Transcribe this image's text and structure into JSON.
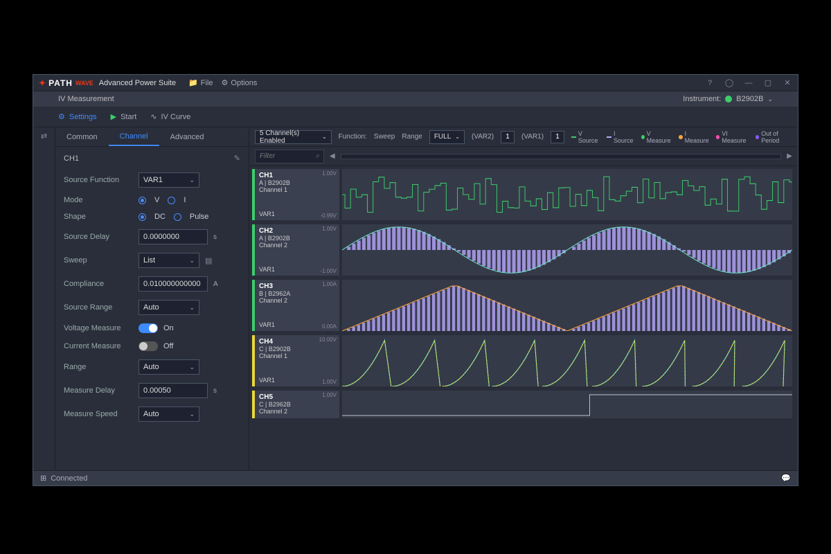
{
  "titlebar": {
    "brand_path": "PATH",
    "brand_wave": "WAVE",
    "suite": "Advanced Power Suite",
    "file": "File",
    "options": "Options",
    "brand_icon_color": "#e8391a"
  },
  "subheader": {
    "title": "IV Measurement",
    "instrument_label": "Instrument:",
    "instrument_value": "B2902B",
    "status_color": "#3bce6b"
  },
  "toolbar": {
    "settings": "Settings",
    "start": "Start",
    "ivcurve": "IV Curve",
    "settings_color": "#3d8bff",
    "start_color": "#3bce6b"
  },
  "tabs": {
    "common": "Common",
    "channel": "Channel",
    "advanced": "Advanced",
    "active": "channel"
  },
  "sidebar": {
    "ch": "CH1",
    "source_function": {
      "label": "Source Function",
      "value": "VAR1"
    },
    "mode": {
      "label": "Mode",
      "v": "V",
      "i": "I",
      "selected": "V"
    },
    "shape": {
      "label": "Shape",
      "dc": "DC",
      "pulse": "Pulse",
      "selected": "DC"
    },
    "source_delay": {
      "label": "Source Delay",
      "value": "0.0000000",
      "unit": "s"
    },
    "sweep": {
      "label": "Sweep",
      "value": "List"
    },
    "compliance": {
      "label": "Compliance",
      "value": "0.010000000000",
      "unit": "A"
    },
    "source_range": {
      "label": "Source Range",
      "value": "Auto"
    },
    "voltage_measure": {
      "label": "Voltage Measure",
      "state": "On",
      "on": true
    },
    "current_measure": {
      "label": "Current Measure",
      "state": "Off",
      "on": false
    },
    "range": {
      "label": "Range",
      "value": "Auto"
    },
    "measure_delay": {
      "label": "Measure Delay",
      "value": "0.00050",
      "unit": "s"
    },
    "measure_speed": {
      "label": "Measure Speed",
      "value": "Auto"
    }
  },
  "controls": {
    "channels_enabled": "5 Channel(s) Enabled",
    "function_label": "Function:",
    "function_value": "Sweep",
    "range_label": "Range",
    "range_value": "FULL",
    "var2_label": "(VAR2)",
    "var2_value": "1",
    "var1_label": "(VAR1)",
    "var1_value": "1"
  },
  "legend": [
    {
      "label": "V Source",
      "color": "#3bce6b",
      "shape": "line"
    },
    {
      "label": "I Source",
      "color": "#b9a8ff",
      "shape": "line"
    },
    {
      "label": "V Measure",
      "color": "#3bce6b",
      "shape": "dot"
    },
    {
      "label": "I Measure",
      "color": "#ffa53b",
      "shape": "dot"
    },
    {
      "label": "VI Measure",
      "color": "#ff4db5",
      "shape": "dot"
    },
    {
      "label": "Out of Period",
      "color": "#8e5bff",
      "shape": "dot"
    }
  ],
  "filter": {
    "placeholder": "Filter"
  },
  "channels": [
    {
      "name": "CH1",
      "sub1": "A | B2902B",
      "sub2": "Channel 1",
      "var": "VAR1",
      "marker": "#3bce6b",
      "ytop": "1.00V",
      "ybot": "-0.99V",
      "wave": "random_step",
      "color": "#3bce6b"
    },
    {
      "name": "CH2",
      "sub1": "A | B2902B",
      "sub2": "Channel 2",
      "var": "VAR1",
      "marker": "#3bce6b",
      "ytop": "1.00V",
      "ybot": "-1.00V",
      "wave": "sine_bars",
      "color": "#6be0c8",
      "color2": "#b9a8ff"
    },
    {
      "name": "CH3",
      "sub1": "B | B2962A",
      "sub2": "Channel 2",
      "var": "VAR1",
      "marker": "#3bce6b",
      "ytop": "1.00A",
      "ybot": "0.00A",
      "wave": "tri_bars",
      "color": "#b9a8ff",
      "color2": "#ffa53b"
    },
    {
      "name": "CH4",
      "sub1": "C | B2902B",
      "sub2": "Channel 1",
      "var": "VAR1",
      "marker": "#e8d838",
      "ytop": "10.00V",
      "ybot": "1.00V",
      "wave": "exp_ramps",
      "color": "#6be0c8",
      "color2": "#e8d838"
    },
    {
      "name": "CH5",
      "sub1": "C | B2962B",
      "sub2": "Channel 2",
      "var": "",
      "marker": "#e8d838",
      "ytop": "1.00V",
      "ybot": "",
      "wave": "flat_step",
      "color": "#c0c5d0"
    }
  ],
  "statusbar": {
    "connected": "Connected"
  },
  "colors": {
    "bg": "#2a2e3a",
    "panel": "#3a4050",
    "plot_bg": "#353a48",
    "accent": "#3d8bff",
    "border": "#4a5568"
  }
}
